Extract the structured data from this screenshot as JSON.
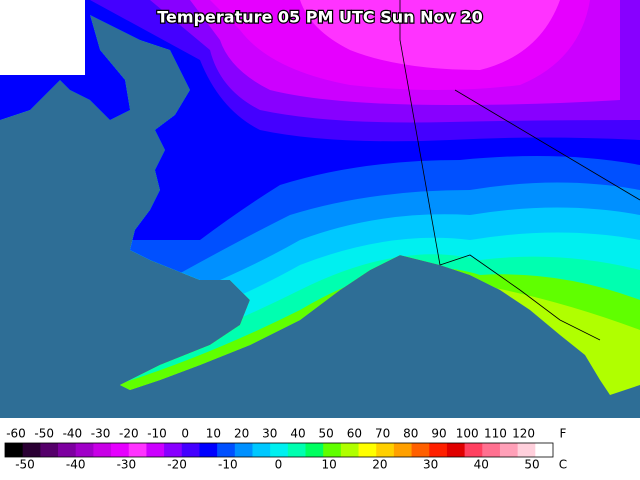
{
  "title": "Temperature 05 PM UTC Sun Nov 20",
  "legend": {
    "f_labels": [
      -60,
      -50,
      -40,
      -30,
      -20,
      -10,
      0,
      10,
      20,
      30,
      40,
      50,
      60,
      70,
      80,
      90,
      100,
      110,
      120
    ],
    "f_unit": "F",
    "c_labels": [
      -50,
      -40,
      -30,
      -20,
      -10,
      0,
      10,
      20,
      30,
      40,
      50
    ],
    "c_unit": "C",
    "colors": [
      "#000000",
      "#2a0033",
      "#55006a",
      "#7d00a0",
      "#a000c8",
      "#c800e6",
      "#e600ff",
      "#ff33ff",
      "#cc00ff",
      "#8800ff",
      "#4400ff",
      "#0000ff",
      "#0050ff",
      "#0090ff",
      "#00c8ff",
      "#00f0f0",
      "#00ffb0",
      "#00ff60",
      "#60ff00",
      "#b0ff00",
      "#ffff00",
      "#ffd000",
      "#ffa000",
      "#ff6000",
      "#ff2000",
      "#e00000",
      "#ff4060",
      "#ff7090",
      "#ffa0b8",
      "#ffd0dc",
      "#ffffff"
    ]
  }
}
